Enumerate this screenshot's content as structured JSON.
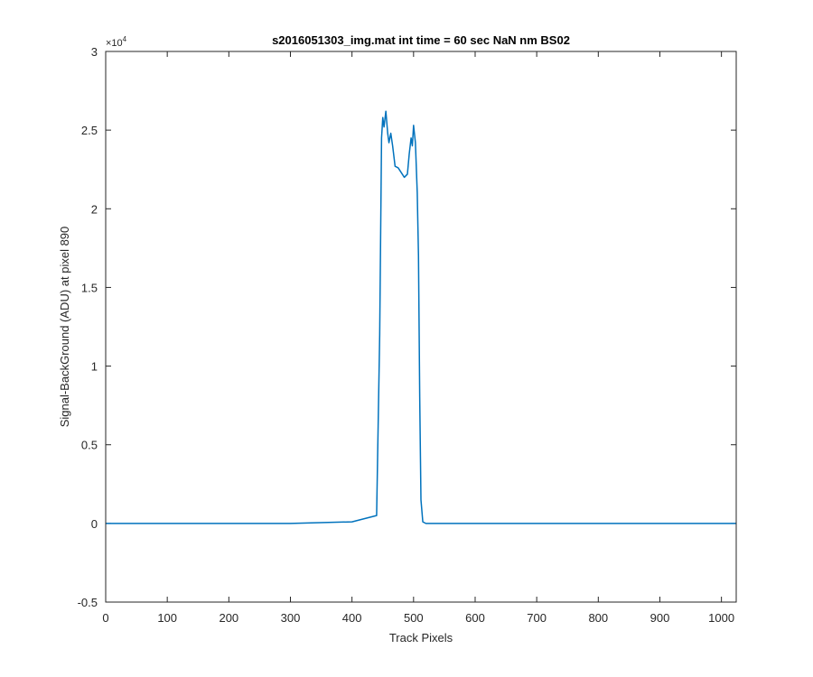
{
  "chart_data": {
    "type": "line",
    "title": "s2016051303_img.mat int time = 60 sec  NaN nm BS02",
    "xlabel": "Track Pixels",
    "ylabel": "Signal-BackGround (ADU) at pixel 890",
    "xlim": [
      0,
      1024
    ],
    "ylim": [
      -5000,
      30000
    ],
    "xticks": [
      0,
      100,
      200,
      300,
      400,
      500,
      600,
      700,
      800,
      900,
      1000
    ],
    "yticks": [
      -5000,
      0,
      5000,
      10000,
      15000,
      20000,
      25000,
      30000
    ],
    "ytick_labels": [
      "-0.5",
      "0",
      "0.5",
      "1",
      "1.5",
      "2",
      "2.5",
      "3"
    ],
    "y_exponent_label": "×10",
    "y_exponent_power": "4",
    "grid": false,
    "series": [
      {
        "color": "#0072BD",
        "x": [
          0,
          100,
          200,
          300,
          400,
          440,
          445,
          448,
          450,
          452,
          455,
          458,
          460,
          463,
          466,
          470,
          475,
          480,
          485,
          490,
          493,
          496,
          498,
          500,
          503,
          506,
          508,
          510,
          512,
          515,
          520,
          600,
          700,
          800,
          900,
          1024
        ],
        "y": [
          0,
          0,
          0,
          0,
          100,
          500,
          12000,
          24500,
          25800,
          25200,
          26200,
          24800,
          24200,
          24800,
          24000,
          22700,
          22600,
          22300,
          22000,
          22200,
          23500,
          24500,
          24000,
          25300,
          24200,
          21000,
          17000,
          8000,
          1500,
          100,
          0,
          0,
          0,
          0,
          0,
          0
        ]
      }
    ]
  }
}
